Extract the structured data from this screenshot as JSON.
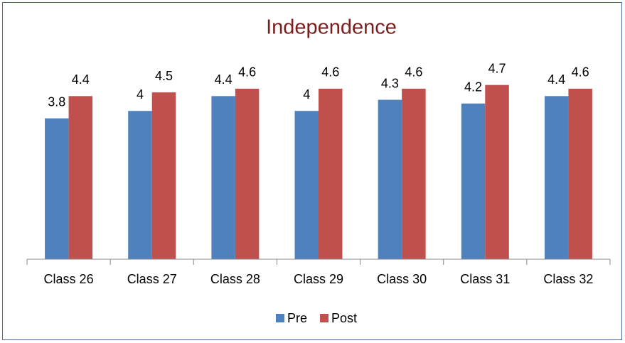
{
  "chart_data": {
    "type": "bar",
    "title": "Independence",
    "categories": [
      "Class 26",
      "Class 27",
      "Class 28",
      "Class 29",
      "Class 30",
      "Class 31",
      "Class 32"
    ],
    "series": [
      {
        "name": "Pre",
        "color": "#4f81bd",
        "values": [
          3.8,
          4,
          4.4,
          4,
          4.3,
          4.2,
          4.4
        ]
      },
      {
        "name": "Post",
        "color": "#c0504d",
        "values": [
          4.4,
          4.5,
          4.6,
          4.6,
          4.6,
          4.7,
          4.6
        ]
      }
    ],
    "ylim": [
      0,
      5
    ],
    "legend": "bottom"
  }
}
